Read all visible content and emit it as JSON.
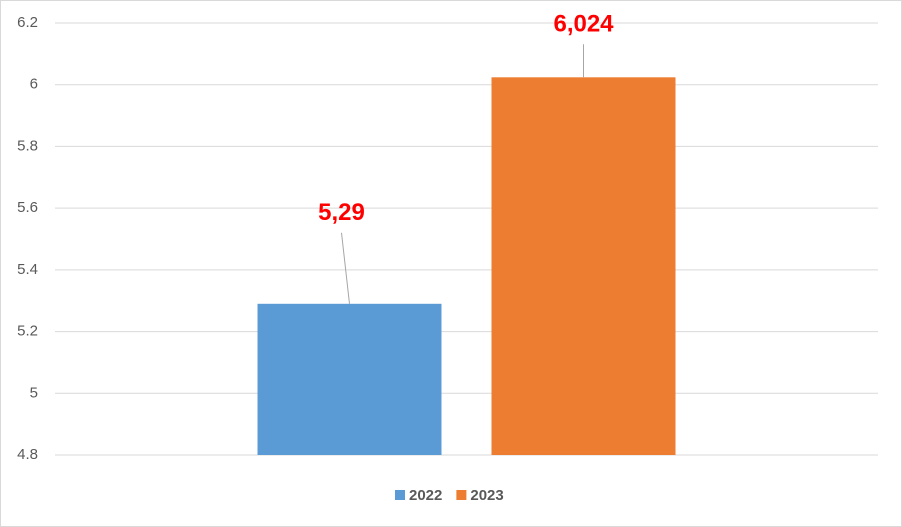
{
  "chart_data": {
    "type": "bar",
    "categories": [
      null
    ],
    "series": [
      {
        "name": "2022",
        "color": "#5b9bd5",
        "values": [
          5.29
        ],
        "value_labels": [
          "5,29"
        ]
      },
      {
        "name": "2023",
        "color": "#ed7d31",
        "values": [
          6.024
        ],
        "value_labels": [
          "6,024"
        ]
      }
    ],
    "ylim": [
      4.8,
      6.2
    ],
    "yticks": [
      4.8,
      5,
      5.2,
      5.4,
      5.6,
      5.8,
      6,
      6.2
    ],
    "grid": true,
    "legend": "bottom",
    "value_label_color": "#ff0000"
  }
}
